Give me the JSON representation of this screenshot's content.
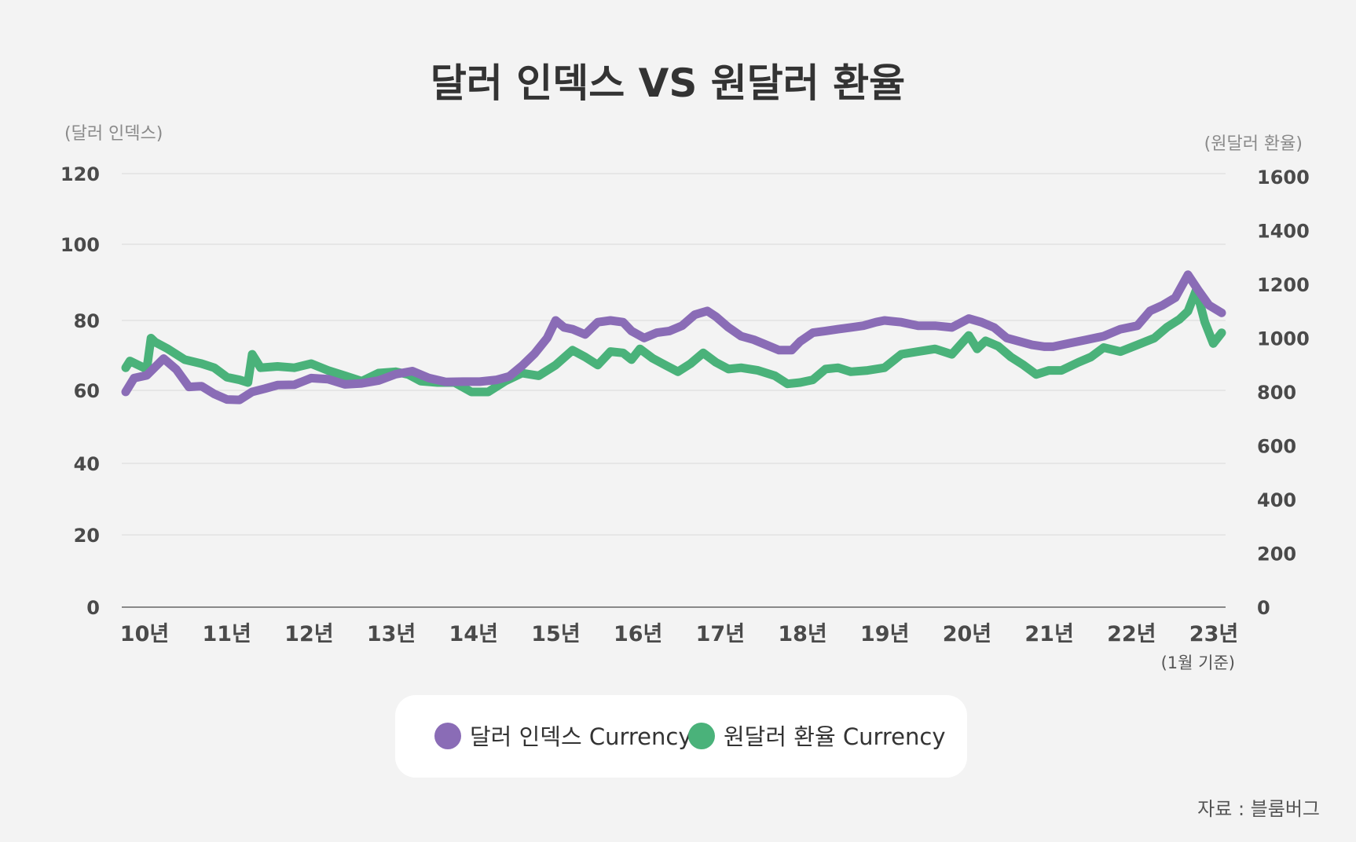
{
  "chart_data": {
    "type": "line",
    "title": "달러 인덱스 VS 원달러 환율",
    "y_left_label": "(달러 인덱스)",
    "y_right_label": "(원달러 환율)",
    "y_left_ticks": [
      "0",
      "20",
      "40",
      "60",
      "80",
      "100",
      "120"
    ],
    "y_right_ticks": [
      "0",
      "200",
      "400",
      "600",
      "800",
      "1000",
      "1200",
      "1400",
      "1600"
    ],
    "x_ticks": [
      "10년",
      "11년",
      "12년",
      "13년",
      "14년",
      "15년",
      "16년",
      "17년",
      "18년",
      "19년",
      "20년",
      "21년",
      "22년",
      "23년"
    ],
    "x_note": "(1월 기준)",
    "ylim_left": [
      0,
      120
    ],
    "ylim_right": [
      0,
      1600
    ],
    "grid": true,
    "legend_position": "bottom",
    "series": [
      {
        "name": "달러 인덱스 Currency",
        "axis": "left",
        "color": "#8a6cb6",
        "x": [
          2010.0,
          2010.1,
          2010.25,
          2010.45,
          2010.6,
          2010.75,
          2010.9,
          2011.05,
          2011.2,
          2011.35,
          2011.5,
          2011.65,
          2011.8,
          2012.0,
          2012.2,
          2012.4,
          2012.6,
          2012.8,
          2013.0,
          2013.2,
          2013.4,
          2013.6,
          2013.8,
          2014.0,
          2014.2,
          2014.4,
          2014.55,
          2014.7,
          2014.85,
          2015.0,
          2015.1,
          2015.2,
          2015.3,
          2015.45,
          2015.6,
          2015.75,
          2015.9,
          2016.0,
          2016.15,
          2016.3,
          2016.45,
          2016.6,
          2016.75,
          2016.9,
          2017.0,
          2017.15,
          2017.3,
          2017.45,
          2017.6,
          2017.75,
          2017.9,
          2018.0,
          2018.15,
          2018.3,
          2018.45,
          2018.6,
          2018.75,
          2018.9,
          2019.0,
          2019.2,
          2019.4,
          2019.6,
          2019.8,
          2020.0,
          2020.15,
          2020.3,
          2020.45,
          2020.6,
          2020.75,
          2020.9,
          2021.0,
          2021.2,
          2021.4,
          2021.6,
          2021.8,
          2022.0,
          2022.15,
          2022.3,
          2022.45,
          2022.6,
          2022.72,
          2022.85,
          2023.0
        ],
        "values": [
          59.6,
          63.5,
          64.3,
          69.1,
          66.0,
          61.0,
          61.2,
          59.0,
          57.5,
          57.4,
          59.6,
          60.5,
          61.5,
          61.6,
          63.5,
          63.2,
          61.7,
          62.0,
          62.8,
          64.6,
          65.5,
          63.5,
          62.4,
          62.5,
          62.5,
          63.0,
          64.0,
          67.0,
          70.5,
          75.0,
          80.0,
          78.0,
          77.5,
          76.0,
          79.5,
          80.0,
          79.5,
          77.0,
          75.0,
          76.5,
          77.0,
          78.5,
          81.5,
          82.5,
          81.0,
          78.0,
          75.5,
          74.5,
          73.0,
          71.5,
          71.5,
          74.0,
          76.5,
          77.0,
          77.5,
          78.0,
          78.5,
          79.5,
          80.0,
          79.5,
          78.5,
          78.5,
          78.0,
          80.5,
          79.5,
          78.0,
          75.0,
          74.0,
          73.0,
          72.5,
          72.5,
          73.5,
          74.5,
          75.5,
          77.5,
          78.5,
          82.5,
          84.0,
          86.0,
          92.0,
          88.0,
          84.0,
          82.0
        ]
      },
      {
        "name": "원달러 환율 Currency",
        "axis": "right",
        "color": "#4ab27a",
        "x": [
          2010.0,
          2010.05,
          2010.15,
          2010.25,
          2010.3,
          2010.35,
          2010.5,
          2010.7,
          2010.9,
          2011.05,
          2011.2,
          2011.35,
          2011.45,
          2011.5,
          2011.6,
          2011.8,
          2012.0,
          2012.2,
          2012.4,
          2012.6,
          2012.8,
          2013.0,
          2013.2,
          2013.35,
          2013.5,
          2013.7,
          2013.9,
          2014.1,
          2014.3,
          2014.5,
          2014.7,
          2014.9,
          2015.1,
          2015.3,
          2015.45,
          2015.6,
          2015.75,
          2015.9,
          2016.0,
          2016.1,
          2016.25,
          2016.4,
          2016.55,
          2016.7,
          2016.85,
          2017.0,
          2017.15,
          2017.3,
          2017.5,
          2017.7,
          2017.85,
          2018.0,
          2018.15,
          2018.3,
          2018.45,
          2018.6,
          2018.8,
          2019.0,
          2019.2,
          2019.4,
          2019.6,
          2019.8,
          2020.0,
          2020.1,
          2020.2,
          2020.35,
          2020.5,
          2020.65,
          2020.8,
          2020.95,
          2021.1,
          2021.3,
          2021.45,
          2021.6,
          2021.8,
          2022.0,
          2022.2,
          2022.35,
          2022.5,
          2022.6,
          2022.7,
          2022.8,
          2022.9,
          2023.0
        ],
        "values": [
          890,
          915,
          900,
          885,
          1000,
          985,
          960,
          920,
          905,
          890,
          855,
          845,
          835,
          940,
          890,
          895,
          890,
          905,
          880,
          860,
          840,
          870,
          875,
          865,
          840,
          835,
          835,
          800,
          800,
          840,
          870,
          860,
          900,
          955,
          930,
          900,
          950,
          945,
          920,
          960,
          925,
          900,
          875,
          905,
          945,
          910,
          885,
          890,
          880,
          860,
          830,
          835,
          845,
          885,
          890,
          875,
          880,
          890,
          940,
          950,
          960,
          940,
          1010,
          960,
          990,
          970,
          930,
          900,
          865,
          880,
          880,
          910,
          930,
          965,
          950,
          975,
          1000,
          1040,
          1070,
          1100,
          1180,
          1060,
          980,
          1020
        ]
      }
    ]
  },
  "legend": {
    "items": [
      {
        "label": "달러 인덱스 Currency",
        "color": "#8a6cb6"
      },
      {
        "label": "원달러 환율 Currency",
        "color": "#4ab27a"
      }
    ]
  },
  "source": "자료 : 블룸버그"
}
